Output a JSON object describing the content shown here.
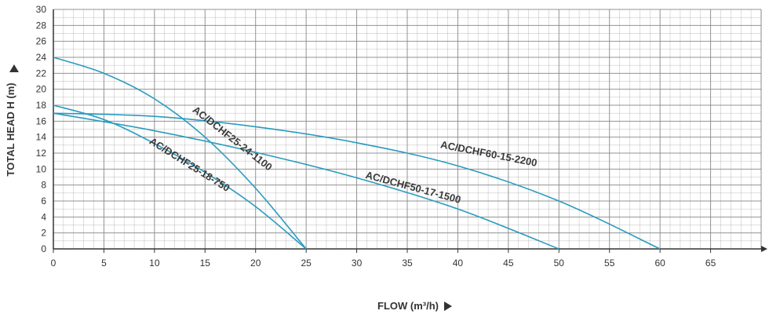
{
  "chart_data": {
    "type": "line",
    "xlabel": "FLOW (m³/h)",
    "ylabel": "TOTAL HEAD H (m)",
    "xlim": [
      0,
      70
    ],
    "ylim": [
      0,
      30
    ],
    "x_ticks": [
      "0",
      "5",
      "10",
      "15",
      "20",
      "25",
      "30",
      "35",
      "40",
      "45",
      "50",
      "55",
      "60",
      "65"
    ],
    "y_ticks": [
      "0",
      "2",
      "4",
      "6",
      "8",
      "10",
      "12",
      "14",
      "16",
      "18",
      "20",
      "22",
      "24",
      "26",
      "28",
      "30"
    ],
    "grid": true,
    "colors": {
      "curve": "#2a9bbf",
      "grid": "#888888",
      "axis": "#333333"
    },
    "series": [
      {
        "name": "AC/DCHF25-24-1100",
        "shutoff_head": 24,
        "max_flow": 25,
        "points": [
          [
            0,
            24
          ],
          [
            5,
            22
          ],
          [
            10,
            18.8
          ],
          [
            15,
            14
          ],
          [
            20,
            7.6
          ],
          [
            25,
            0
          ]
        ]
      },
      {
        "name": "AC/DCHF25-18-750",
        "shutoff_head": 18,
        "max_flow": 25,
        "points": [
          [
            0,
            18
          ],
          [
            5,
            16.2
          ],
          [
            10,
            13.2
          ],
          [
            15,
            9.6
          ],
          [
            20,
            5.3
          ],
          [
            25,
            0
          ]
        ]
      },
      {
        "name": "AC/DCHF50-17-1500",
        "shutoff_head": 17,
        "max_flow": 50,
        "points": [
          [
            0,
            17
          ],
          [
            10,
            14.8
          ],
          [
            20,
            12.1
          ],
          [
            30,
            8.9
          ],
          [
            40,
            5
          ],
          [
            50,
            0
          ]
        ]
      },
      {
        "name": "AC/DCHF60-15-2200",
        "shutoff_head": 17,
        "max_flow": 60,
        "points": [
          [
            0,
            17
          ],
          [
            10,
            16.6
          ],
          [
            20,
            15.3
          ],
          [
            30,
            13.3
          ],
          [
            40,
            10.4
          ],
          [
            50,
            6
          ],
          [
            60,
            0
          ]
        ]
      }
    ]
  }
}
